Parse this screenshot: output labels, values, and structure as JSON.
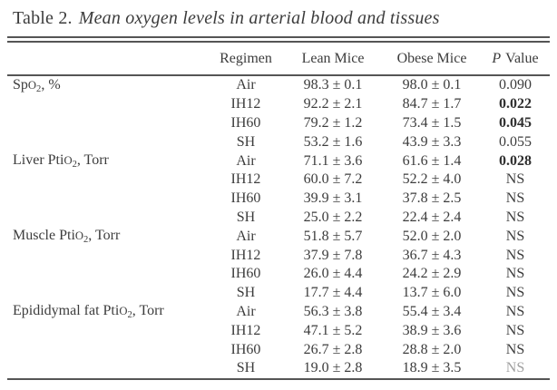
{
  "colors": {
    "ink": "#3c3c3c",
    "rule": "#555555"
  },
  "table": {
    "title_label": "Table 2.",
    "title_caption": "Mean oxygen levels in arterial blood and tissues",
    "header": {
      "parameter": "",
      "regimen": "Regimen",
      "lean": "Lean Mice",
      "obese": "Obese Mice",
      "p_italic": "P",
      "p_rest": "Value"
    },
    "groups": [
      {
        "param_pre": "Sp",
        "param_o": "O",
        "param_sub": "2",
        "param_post": ", %",
        "rows": [
          {
            "regimen": "Air",
            "lean": "98.3 ± 0.1",
            "obese": "98.0 ± 0.1",
            "p": "0.090"
          },
          {
            "regimen": "IH12",
            "lean": "92.2 ± 2.1",
            "obese": "84.7 ± 1.7",
            "p": "0.022"
          },
          {
            "regimen": "IH60",
            "lean": "79.2 ± 1.2",
            "obese": "73.4 ± 1.5",
            "p": "0.045"
          },
          {
            "regimen": "SH",
            "lean": "53.2 ± 1.6",
            "obese": "43.9 ± 3.3",
            "p": "0.055"
          }
        ]
      },
      {
        "param_pre": "Liver Pti",
        "param_o": "O",
        "param_sub": "2",
        "param_post": ", Torr",
        "rows": [
          {
            "regimen": "Air",
            "lean": "71.1 ± 3.6",
            "obese": "61.6 ± 1.4",
            "p": "0.028"
          },
          {
            "regimen": "IH12",
            "lean": "60.0 ± 7.2",
            "obese": "52.2 ± 4.0",
            "p": "NS"
          },
          {
            "regimen": "IH60",
            "lean": "39.9 ± 3.1",
            "obese": "37.8 ± 2.5",
            "p": "NS"
          },
          {
            "regimen": "SH",
            "lean": "25.0 ± 2.2",
            "obese": "22.4 ± 2.4",
            "p": "NS"
          }
        ]
      },
      {
        "param_pre": "Muscle Pti",
        "param_o": "O",
        "param_sub": "2",
        "param_post": ", Torr",
        "rows": [
          {
            "regimen": "Air",
            "lean": "51.8 ± 5.7",
            "obese": "52.0 ± 2.0",
            "p": "NS"
          },
          {
            "regimen": "IH12",
            "lean": "37.9 ± 7.8",
            "obese": "36.7 ± 4.3",
            "p": "NS"
          },
          {
            "regimen": "IH60",
            "lean": "26.0 ± 4.4",
            "obese": "24.2 ± 2.9",
            "p": "NS"
          },
          {
            "regimen": "SH",
            "lean": "17.7 ± 4.4",
            "obese": "13.7 ± 6.0",
            "p": "NS"
          }
        ]
      },
      {
        "param_pre": "Epididymal fat Pti",
        "param_o": "O",
        "param_sub": "2",
        "param_post": ", Torr",
        "rows": [
          {
            "regimen": "Air",
            "lean": "56.3 ± 3.8",
            "obese": "55.4 ± 3.4",
            "p": "NS"
          },
          {
            "regimen": "IH12",
            "lean": "47.1 ± 5.2",
            "obese": "38.9 ± 3.6",
            "p": "NS"
          },
          {
            "regimen": "IH60",
            "lean": "26.7 ± 2.8",
            "obese": "28.8 ± 2.0",
            "p": "NS"
          },
          {
            "regimen": "SH",
            "lean": "19.0 ± 2.8",
            "obese": "18.9 ± 3.5",
            "p": "NS"
          }
        ]
      }
    ]
  }
}
